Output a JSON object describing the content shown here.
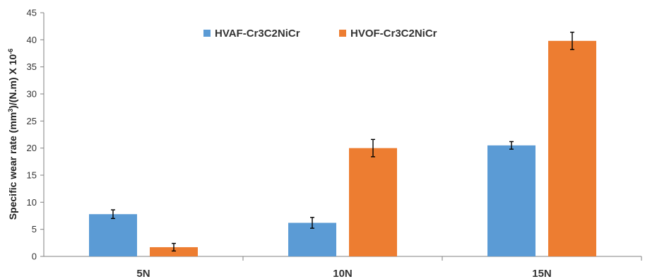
{
  "chart_data": {
    "type": "bar",
    "categories": [
      "5N",
      "10N",
      "15N"
    ],
    "series": [
      {
        "name": "HVAF-Cr3C2NiCr",
        "color": "#5B9BD5",
        "values": [
          7.8,
          6.2,
          20.5
        ],
        "errors": [
          0.8,
          1.0,
          0.7
        ]
      },
      {
        "name": "HVOF-Cr3C2NiCr",
        "color": "#ED7D31",
        "values": [
          1.7,
          20.0,
          39.8
        ],
        "errors": [
          0.7,
          1.6,
          1.6
        ]
      }
    ],
    "ylabel": {
      "main": "Specific wear rate  (mm",
      "sup1": "3",
      "mid": ")/(N.m) X 10",
      "sup2": "-6"
    },
    "ylim": [
      0,
      45
    ],
    "yticks": [
      "0",
      "5",
      "10",
      "15",
      "20",
      "25",
      "30",
      "35",
      "40",
      "45"
    ],
    "legend_position": "top",
    "grid": false
  }
}
